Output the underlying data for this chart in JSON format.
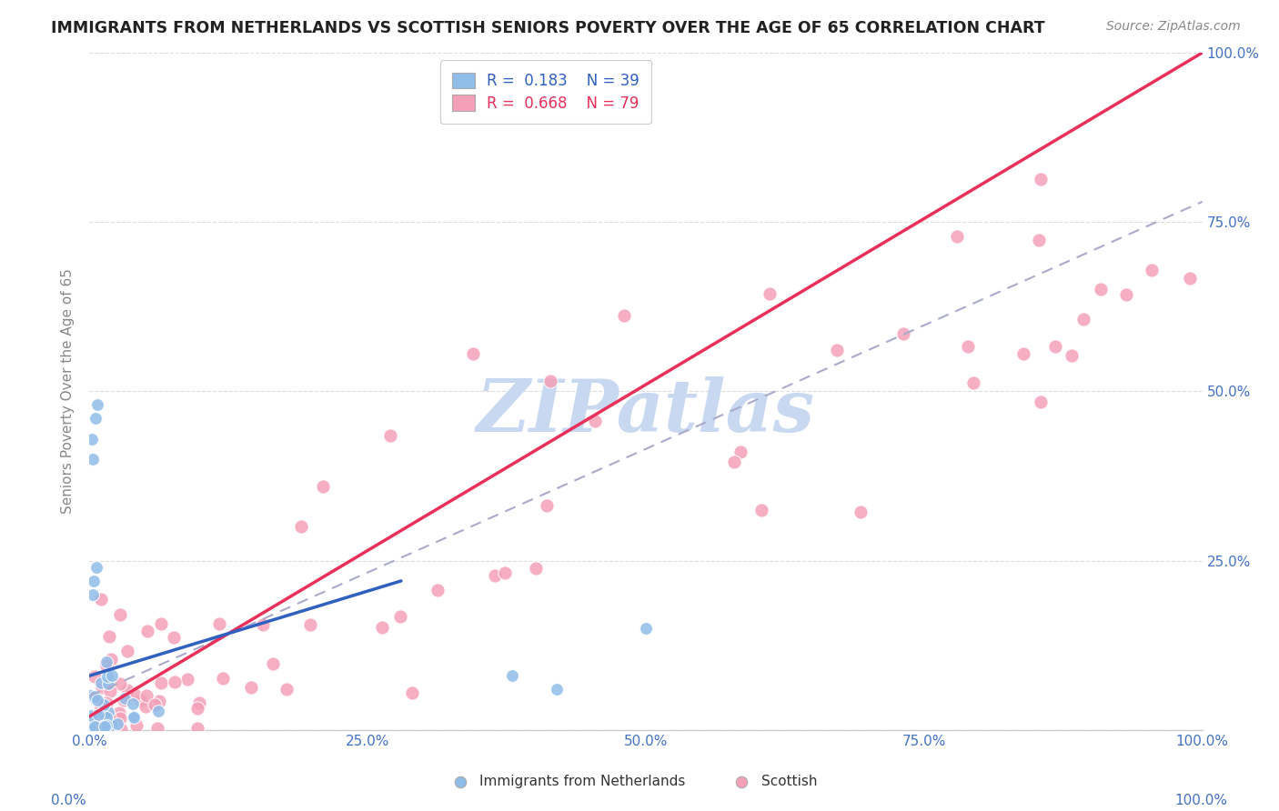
{
  "title": "IMMIGRANTS FROM NETHERLANDS VS SCOTTISH SENIORS POVERTY OVER THE AGE OF 65 CORRELATION CHART",
  "source": "Source: ZipAtlas.com",
  "ylabel": "Seniors Poverty Over the Age of 65",
  "watermark": "ZIPatlas",
  "scatter_blue_color": "#90bce8",
  "scatter_pink_color": "#f4a0b8",
  "line_blue_color": "#3060c0",
  "line_pink_color": "#e8305a",
  "line_gray_color": "#aaaacc",
  "background_color": "#ffffff",
  "watermark_color": "#c8d8f0",
  "grid_color": "#dddddd",
  "title_color": "#222222",
  "source_color": "#888888",
  "tick_color_blue": "#4472c4",
  "tick_color_gray": "#888888"
}
